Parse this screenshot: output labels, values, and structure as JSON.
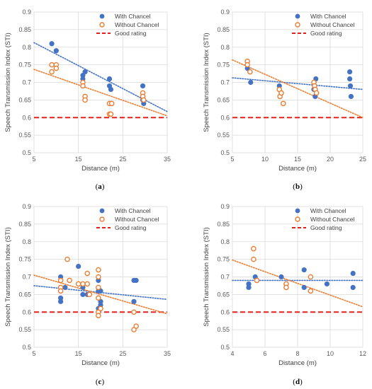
{
  "chart_data": [
    {
      "type": "scatter",
      "panel_label": "a",
      "xlabel": "Distance (m)",
      "ylabel": "Speech Transmission Index (STI)",
      "xlim": [
        5,
        35
      ],
      "ylim": [
        0.5,
        0.9
      ],
      "xticks": [
        5,
        15,
        25,
        35
      ],
      "yticks": [
        0.5,
        0.55,
        0.6,
        0.65,
        0.7,
        0.75,
        0.8,
        0.85,
        0.9
      ],
      "grid": true,
      "legend_position": "top-right",
      "good_rating": 0.6,
      "series": [
        {
          "name": "With Chancel",
          "color": "#4472c4",
          "marker": "filled",
          "points": [
            [
              9,
              0.81
            ],
            [
              10,
              0.79
            ],
            [
              16,
              0.72
            ],
            [
              16,
              0.71
            ],
            [
              16.5,
              0.73
            ],
            [
              22,
              0.71
            ],
            [
              22,
              0.69
            ],
            [
              22.3,
              0.68
            ],
            [
              29.5,
              0.69
            ],
            [
              29.5,
              0.65
            ],
            [
              29.7,
              0.64
            ]
          ],
          "trend": [
            [
              5,
              0.813
            ],
            [
              35,
              0.617
            ]
          ]
        },
        {
          "name": "Without Chancel",
          "color": "#ed7d31",
          "marker": "hollow",
          "points": [
            [
              9,
              0.75
            ],
            [
              9,
              0.73
            ],
            [
              10,
              0.75
            ],
            [
              10,
              0.74
            ],
            [
              16,
              0.7
            ],
            [
              16,
              0.69
            ],
            [
              16.5,
              0.66
            ],
            [
              16.5,
              0.65
            ],
            [
              22,
              0.64
            ],
            [
              22,
              0.61
            ],
            [
              22.3,
              0.61
            ],
            [
              22.5,
              0.64
            ],
            [
              29.5,
              0.67
            ],
            [
              29.5,
              0.66
            ],
            [
              29.7,
              0.65
            ]
          ],
          "trend": [
            [
              5,
              0.737
            ],
            [
              35,
              0.605
            ]
          ]
        },
        {
          "name": "Good rating",
          "color": "#e3201b",
          "marker": "none"
        }
      ]
    },
    {
      "type": "scatter",
      "panel_label": "b",
      "xlabel": "Distance (m)",
      "ylabel": "Speech Transmission Index (STI)",
      "xlim": [
        5,
        25
      ],
      "ylim": [
        0.5,
        0.9
      ],
      "xticks": [
        5,
        10,
        15,
        20,
        25
      ],
      "yticks": [
        0.5,
        0.55,
        0.6,
        0.65,
        0.7,
        0.75,
        0.8,
        0.85,
        0.9
      ],
      "grid": true,
      "legend_position": "top-right",
      "good_rating": 0.6,
      "series": [
        {
          "name": "With Chancel",
          "color": "#4472c4",
          "marker": "filled",
          "points": [
            [
              7.3,
              0.74
            ],
            [
              7.7,
              0.73
            ],
            [
              7.8,
              0.7
            ],
            [
              12.2,
              0.69
            ],
            [
              12.5,
              0.67
            ],
            [
              17.7,
              0.66
            ],
            [
              17.8,
              0.71
            ],
            [
              17.5,
              0.68
            ],
            [
              23,
              0.73
            ],
            [
              23,
              0.71
            ],
            [
              23.1,
              0.69
            ],
            [
              23.2,
              0.66
            ]
          ],
          "trend": [
            [
              5,
              0.713
            ],
            [
              25,
              0.68
            ]
          ]
        },
        {
          "name": "Without Chancel",
          "color": "#ed7d31",
          "marker": "hollow",
          "points": [
            [
              7.3,
              0.76
            ],
            [
              7.3,
              0.75
            ],
            [
              7.7,
              0.73
            ],
            [
              12.2,
              0.68
            ],
            [
              12.3,
              0.66
            ],
            [
              12.5,
              0.67
            ],
            [
              12.8,
              0.64
            ],
            [
              17.5,
              0.7
            ],
            [
              17.6,
              0.69
            ],
            [
              17.7,
              0.68
            ],
            [
              17.9,
              0.67
            ]
          ],
          "trend": [
            [
              5,
              0.764
            ],
            [
              25,
              0.6
            ]
          ]
        },
        {
          "name": "Good rating",
          "color": "#e3201b",
          "marker": "none"
        }
      ]
    },
    {
      "type": "scatter",
      "panel_label": "c",
      "xlabel": "Distance (m)",
      "ylabel": "Speech Transmission Index (STI)",
      "xlim": [
        5,
        35
      ],
      "ylim": [
        0.5,
        0.9
      ],
      "xticks": [
        5,
        15,
        25,
        35
      ],
      "yticks": [
        0.5,
        0.55,
        0.6,
        0.65,
        0.7,
        0.75,
        0.8,
        0.85,
        0.9
      ],
      "grid": true,
      "legend_position": "top-right",
      "good_rating": 0.6,
      "series": [
        {
          "name": "With Chancel",
          "color": "#4472c4",
          "marker": "filled",
          "points": [
            [
              11,
              0.7
            ],
            [
              11,
              0.64
            ],
            [
              11,
              0.63
            ],
            [
              12,
              0.67
            ],
            [
              15,
              0.73
            ],
            [
              16,
              0.65
            ],
            [
              16,
              0.67
            ],
            [
              17,
              0.65
            ],
            [
              19.5,
              0.69
            ],
            [
              19.5,
              0.66
            ],
            [
              19.5,
              0.61
            ],
            [
              20,
              0.66
            ],
            [
              20,
              0.63
            ],
            [
              20,
              0.62
            ],
            [
              27.5,
              0.69
            ],
            [
              28,
              0.69
            ],
            [
              27.5,
              0.63
            ]
          ],
          "trend": [
            [
              5,
              0.675
            ],
            [
              35,
              0.636
            ]
          ]
        },
        {
          "name": "Without Chancel",
          "color": "#ed7d31",
          "marker": "hollow",
          "points": [
            [
              11,
              0.69
            ],
            [
              11,
              0.67
            ],
            [
              11,
              0.66
            ],
            [
              12.5,
              0.75
            ],
            [
              13,
              0.69
            ],
            [
              15,
              0.68
            ],
            [
              16,
              0.68
            ],
            [
              17,
              0.71
            ],
            [
              17,
              0.68
            ],
            [
              17.5,
              0.65
            ],
            [
              19.5,
              0.72
            ],
            [
              19.5,
              0.7
            ],
            [
              19.5,
              0.67
            ],
            [
              19.5,
              0.64
            ],
            [
              19.5,
              0.6
            ],
            [
              19.5,
              0.59
            ],
            [
              20,
              0.61
            ],
            [
              27.5,
              0.6
            ],
            [
              27.5,
              0.55
            ],
            [
              28,
              0.56
            ]
          ],
          "trend": [
            [
              5,
              0.705
            ],
            [
              35,
              0.595
            ]
          ]
        },
        {
          "name": "Good rating",
          "color": "#e3201b",
          "marker": "none"
        }
      ]
    },
    {
      "type": "scatter",
      "panel_label": "d",
      "xlabel": "Distance (m)",
      "ylabel": "Speech Transmission Index (STI)",
      "xlim": [
        4,
        12
      ],
      "ylim": [
        0.5,
        0.9
      ],
      "xticks": [
        4,
        6,
        8,
        10,
        12
      ],
      "yticks": [
        0.5,
        0.55,
        0.6,
        0.65,
        0.7,
        0.75,
        0.8,
        0.85,
        0.9
      ],
      "grid": true,
      "legend_position": "top-right",
      "good_rating": 0.6,
      "series": [
        {
          "name": "With Chancel",
          "color": "#4472c4",
          "marker": "filled",
          "points": [
            [
              5,
              0.68
            ],
            [
              5,
              0.67
            ],
            [
              5.4,
              0.7
            ],
            [
              7,
              0.7
            ],
            [
              8.4,
              0.72
            ],
            [
              8.4,
              0.67
            ],
            [
              9.8,
              0.68
            ],
            [
              11.4,
              0.71
            ],
            [
              11.4,
              0.67
            ]
          ],
          "trend": [
            [
              4,
              0.69
            ],
            [
              12,
              0.69
            ]
          ]
        },
        {
          "name": "Without Chancel",
          "color": "#ed7d31",
          "marker": "hollow",
          "points": [
            [
              5.3,
              0.78
            ],
            [
              5.3,
              0.75
            ],
            [
              5.5,
              0.69
            ],
            [
              7.3,
              0.68
            ],
            [
              7.3,
              0.67
            ],
            [
              8.8,
              0.7
            ],
            [
              8.8,
              0.66
            ]
          ],
          "trend": [
            [
              4,
              0.748
            ],
            [
              12,
              0.615
            ]
          ]
        },
        {
          "name": "Good rating",
          "color": "#e3201b",
          "marker": "none"
        }
      ]
    }
  ]
}
